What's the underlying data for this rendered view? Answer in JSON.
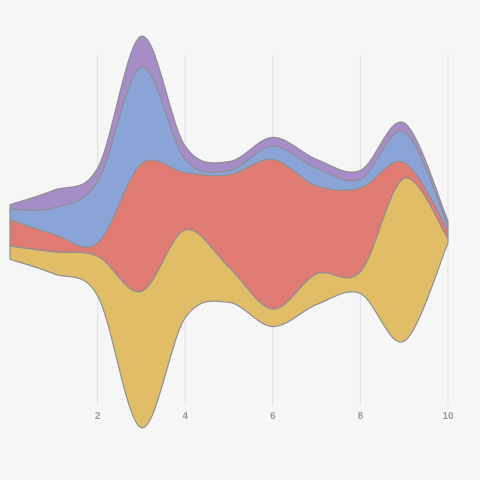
{
  "chart_data": {
    "type": "area",
    "subtype": "streamgraph",
    "baseline": "centered",
    "curve": "smooth",
    "grid": {
      "vertical": true,
      "horizontal": false
    },
    "title": "",
    "xlabel": "",
    "ylabel": "",
    "xlim": [
      0,
      10
    ],
    "x_ticks": [
      "2",
      "4",
      "6",
      "8",
      "10"
    ],
    "x_tick_values": [
      2,
      4,
      6,
      8,
      10
    ],
    "x": [
      0,
      1,
      2,
      3,
      4,
      5,
      6,
      7,
      8,
      9,
      10
    ],
    "series": [
      {
        "color": "#e2bd67",
        "values": [
          15,
          25,
          45,
          155,
          100,
          40,
          20,
          35,
          25,
          185,
          5
        ]
      },
      {
        "color": "#e07b73",
        "values": [
          30,
          20,
          15,
          145,
          65,
          105,
          170,
          100,
          95,
          18,
          10
        ]
      },
      {
        "color": "#8aa4d8",
        "values": [
          12,
          30,
          70,
          110,
          15,
          5,
          15,
          20,
          10,
          35,
          5
        ]
      },
      {
        "color": "#a78dc8",
        "values": [
          5,
          20,
          15,
          35,
          15,
          10,
          10,
          10,
          10,
          10,
          5
        ]
      }
    ]
  }
}
